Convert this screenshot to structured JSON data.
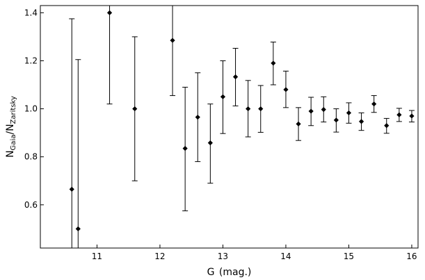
{
  "chart_data": {
    "type": "scatter",
    "title": "",
    "xlabel": {
      "base": "G",
      "unit": "(mag.)"
    },
    "ylabel": {
      "num_main": "N",
      "num_sub": "Gaia",
      "sep": "/",
      "den_main": "N",
      "den_sub": "Zaritsky"
    },
    "xlim": [
      10.1,
      16.1
    ],
    "ylim": [
      0.42,
      1.43
    ],
    "xticks": [
      11,
      12,
      13,
      14,
      15,
      16
    ],
    "xtick_labels": [
      "11",
      "12",
      "13",
      "14",
      "15",
      "16"
    ],
    "yticks": [
      0.6,
      0.8,
      1.0,
      1.2,
      1.4
    ],
    "ytick_labels": [
      "0.6",
      "0.8",
      "1.0",
      "1.2",
      "1.4"
    ],
    "grid": false,
    "legend": false,
    "series": [
      {
        "color": "#000000",
        "marker": "diamond",
        "errorbars": true,
        "points": [
          {
            "x": 10.6,
            "y": 0.665,
            "ylo": 0.42,
            "yhi": 1.375
          },
          {
            "x": 10.7,
            "y": 0.5,
            "ylo": 0.42,
            "yhi": 1.205
          },
          {
            "x": 11.2,
            "y": 1.4,
            "ylo": 1.02,
            "yhi": 1.43
          },
          {
            "x": 11.6,
            "y": 1.0,
            "ylo": 0.7,
            "yhi": 1.3
          },
          {
            "x": 12.2,
            "y": 1.285,
            "ylo": 1.055,
            "yhi": 1.43
          },
          {
            "x": 12.4,
            "y": 0.835,
            "ylo": 0.575,
            "yhi": 1.09
          },
          {
            "x": 12.6,
            "y": 0.965,
            "ylo": 0.78,
            "yhi": 1.15
          },
          {
            "x": 12.8,
            "y": 0.858,
            "ylo": 0.69,
            "yhi": 1.02
          },
          {
            "x": 13.0,
            "y": 1.05,
            "ylo": 0.897,
            "yhi": 1.2
          },
          {
            "x": 13.2,
            "y": 1.133,
            "ylo": 1.012,
            "yhi": 1.252
          },
          {
            "x": 13.4,
            "y": 1.0,
            "ylo": 0.883,
            "yhi": 1.118
          },
          {
            "x": 13.6,
            "y": 1.0,
            "ylo": 0.902,
            "yhi": 1.097
          },
          {
            "x": 13.8,
            "y": 1.19,
            "ylo": 1.1,
            "yhi": 1.278
          },
          {
            "x": 14.0,
            "y": 1.08,
            "ylo": 1.005,
            "yhi": 1.157
          },
          {
            "x": 14.2,
            "y": 0.937,
            "ylo": 0.868,
            "yhi": 1.005
          },
          {
            "x": 14.4,
            "y": 0.99,
            "ylo": 0.93,
            "yhi": 1.048
          },
          {
            "x": 14.6,
            "y": 0.997,
            "ylo": 0.945,
            "yhi": 1.05
          },
          {
            "x": 14.8,
            "y": 0.953,
            "ylo": 0.903,
            "yhi": 1.0
          },
          {
            "x": 15.0,
            "y": 0.983,
            "ylo": 0.94,
            "yhi": 1.025
          },
          {
            "x": 15.2,
            "y": 0.947,
            "ylo": 0.91,
            "yhi": 0.983
          },
          {
            "x": 15.4,
            "y": 1.02,
            "ylo": 0.985,
            "yhi": 1.055
          },
          {
            "x": 15.6,
            "y": 0.93,
            "ylo": 0.898,
            "yhi": 0.96
          },
          {
            "x": 15.8,
            "y": 0.975,
            "ylo": 0.947,
            "yhi": 1.002
          },
          {
            "x": 16.0,
            "y": 0.97,
            "ylo": 0.945,
            "yhi": 0.993
          }
        ]
      }
    ]
  }
}
